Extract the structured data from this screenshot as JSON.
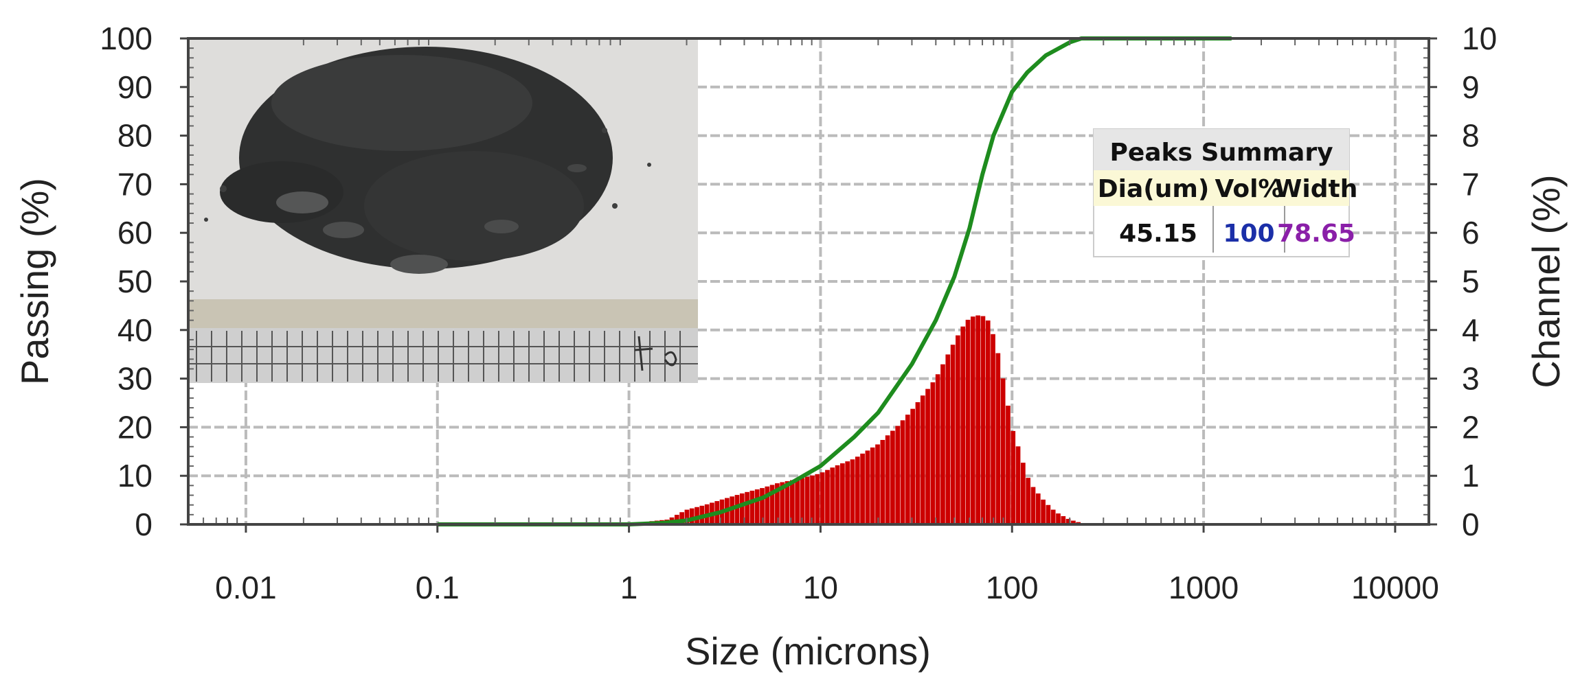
{
  "chart_data": {
    "type": "bar",
    "xlabel": "Size (microns)",
    "ylabel": "Passing (%)",
    "y2label": "Channel (%)",
    "x_scale": "log",
    "xlim": [
      0.005,
      15000
    ],
    "ylim": [
      0,
      100
    ],
    "y2lim": [
      0,
      10
    ],
    "grid": true,
    "x_ticks": [
      "0.01",
      "0.1",
      "1",
      "10",
      "100",
      "1000",
      "10000"
    ],
    "y_ticks": [
      "0",
      "10",
      "20",
      "30",
      "40",
      "50",
      "60",
      "70",
      "80",
      "90",
      "100"
    ],
    "y2_ticks": [
      "0",
      "1",
      "2",
      "3",
      "4",
      "5",
      "6",
      "7",
      "8",
      "9",
      "10"
    ],
    "colors": {
      "channel": "#cc0000",
      "passing": "#1e8c1e",
      "grid": "#bbbbbb"
    },
    "series": [
      {
        "type": "bar",
        "axis": "right",
        "x": [
          0.09,
          0.2,
          0.5,
          1.0,
          1.6,
          2.0,
          2.5,
          3.0,
          4.0,
          5.0,
          6.0,
          8.0,
          10,
          12,
          15,
          20,
          25,
          30,
          35,
          40,
          45,
          50,
          55,
          60,
          65,
          70,
          75,
          80,
          85,
          90,
          95,
          100,
          110,
          120,
          130,
          150,
          170,
          200,
          230,
          250,
          300,
          500,
          1000,
          1400
        ],
        "values": [
          0.02,
          0.02,
          0.02,
          0.02,
          0.1,
          0.3,
          0.4,
          0.5,
          0.65,
          0.75,
          0.85,
          0.95,
          1.05,
          1.2,
          1.35,
          1.65,
          2.0,
          2.35,
          2.7,
          3.0,
          3.4,
          3.75,
          4.05,
          4.25,
          4.3,
          4.3,
          4.2,
          3.9,
          3.5,
          3.0,
          2.5,
          2.0,
          1.5,
          1.0,
          0.75,
          0.45,
          0.25,
          0.1,
          0.03,
          0.02,
          0.02,
          0.02,
          0.02,
          0.02
        ]
      },
      {
        "type": "line",
        "axis": "left",
        "x": [
          0.1,
          0.5,
          1.0,
          1.5,
          2.0,
          3.0,
          5.0,
          7.0,
          10,
          15,
          20,
          30,
          40,
          50,
          60,
          70,
          80,
          100,
          120,
          150,
          200,
          230,
          1400
        ],
        "values": [
          0,
          0,
          0,
          0.3,
          0.8,
          2.5,
          5.5,
          8.5,
          12,
          18,
          23,
          33,
          42,
          51,
          61,
          72,
          80,
          89,
          93,
          96.5,
          99.2,
          100,
          100
        ]
      }
    ],
    "peaks_summary": {
      "title": "Peaks Summary",
      "headers": [
        "Dia(um)",
        "Vol%",
        "Width"
      ],
      "row": [
        "45.15",
        "100",
        "78.65"
      ]
    }
  }
}
